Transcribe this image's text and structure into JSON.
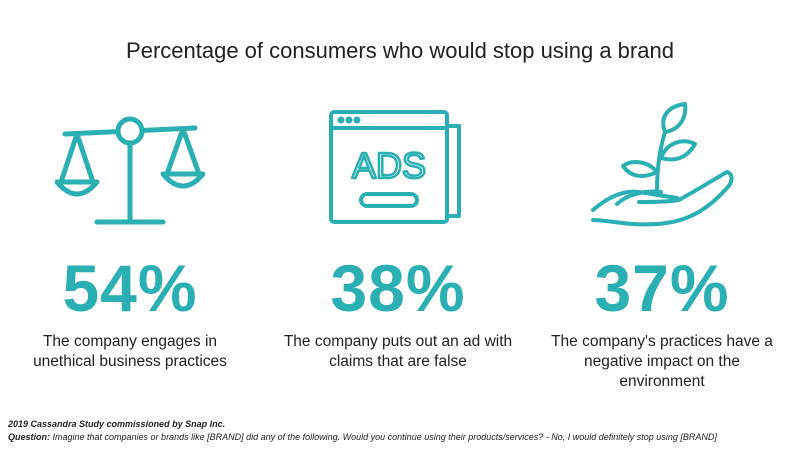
{
  "title": "Percentage of consumers who would stop using a brand",
  "accent_color": "#2ab0b3",
  "stats": [
    {
      "icon": "scales-icon",
      "value": "54%",
      "description": "The company engages in unethical business practices"
    },
    {
      "icon": "ads-window-icon",
      "icon_text": "ADS",
      "value": "38%",
      "description": "The company puts out an ad with claims that are false"
    },
    {
      "icon": "plant-hand-icon",
      "value": "37%",
      "description": "The company's practices have a negative impact on the environment"
    }
  ],
  "footer": {
    "source": "2019 Cassandra Study commissioned by Snap Inc.",
    "question_label": "Question:",
    "question_text": " Imagine that companies or brands like [BRAND] did any of the following. Would you continue using their products/services? - No, I would definitely stop using [BRAND]"
  }
}
